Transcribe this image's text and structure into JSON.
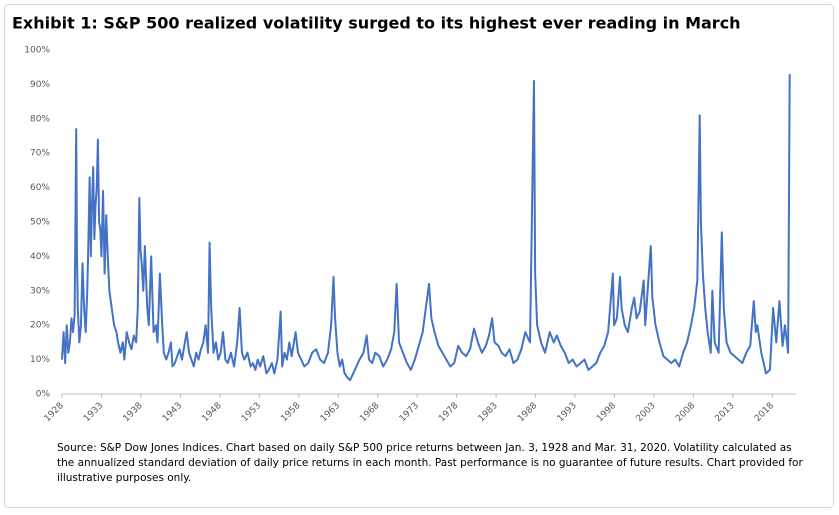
{
  "chart_data": {
    "type": "line",
    "title": "Exhibit 1:  S&P 500 realized volatility surged to its highest ever reading in March",
    "x": [
      1928.0,
      1928.2,
      1928.4,
      1928.6,
      1928.8,
      1929.0,
      1929.2,
      1929.4,
      1929.6,
      1929.8,
      1929.9,
      1930.0,
      1930.2,
      1930.4,
      1930.6,
      1930.8,
      1931.0,
      1931.2,
      1931.35,
      1931.5,
      1931.65,
      1931.8,
      1931.95,
      1932.1,
      1932.25,
      1932.4,
      1932.55,
      1932.7,
      1932.85,
      1933.0,
      1933.2,
      1933.4,
      1933.6,
      1933.8,
      1934.0,
      1934.3,
      1934.6,
      1934.9,
      1935.1,
      1935.4,
      1935.7,
      1935.9,
      1936.2,
      1936.5,
      1936.8,
      1937.1,
      1937.4,
      1937.6,
      1937.8,
      1937.95,
      1938.1,
      1938.3,
      1938.5,
      1938.8,
      1939.0,
      1939.3,
      1939.6,
      1939.9,
      1940.1,
      1940.4,
      1940.7,
      1940.9,
      1941.2,
      1941.5,
      1941.8,
      1942.0,
      1942.3,
      1942.6,
      1942.9,
      1943.2,
      1943.5,
      1943.8,
      1944.1,
      1944.4,
      1944.7,
      1945.0,
      1945.3,
      1945.6,
      1945.9,
      1946.2,
      1946.5,
      1946.7,
      1946.9,
      1947.2,
      1947.5,
      1947.8,
      1948.1,
      1948.4,
      1948.7,
      1949.0,
      1949.4,
      1949.8,
      1950.2,
      1950.5,
      1950.8,
      1951.1,
      1951.5,
      1951.9,
      1952.2,
      1952.5,
      1952.8,
      1953.1,
      1953.5,
      1953.9,
      1954.2,
      1954.6,
      1954.9,
      1955.3,
      1955.7,
      1955.9,
      1956.2,
      1956.5,
      1956.8,
      1957.1,
      1957.6,
      1957.9,
      1958.3,
      1958.7,
      1959.2,
      1959.7,
      1960.2,
      1960.7,
      1961.2,
      1961.7,
      1962.1,
      1962.4,
      1962.6,
      1962.9,
      1963.2,
      1963.5,
      1963.8,
      1964.1,
      1964.5,
      1964.9,
      1965.3,
      1965.7,
      1966.2,
      1966.6,
      1966.9,
      1967.3,
      1967.7,
      1968.2,
      1968.7,
      1969.2,
      1969.7,
      1970.1,
      1970.4,
      1970.7,
      1971.2,
      1971.7,
      1972.2,
      1972.7,
      1973.2,
      1973.7,
      1974.1,
      1974.5,
      1974.8,
      1975.2,
      1975.7,
      1976.2,
      1976.7,
      1977.2,
      1977.7,
      1978.2,
      1978.7,
      1979.2,
      1979.7,
      1980.2,
      1980.7,
      1981.2,
      1981.7,
      1982.1,
      1982.5,
      1982.8,
      1983.3,
      1983.7,
      1984.2,
      1984.7,
      1985.2,
      1985.7,
      1986.2,
      1986.7,
      1987.3,
      1987.8,
      1987.95,
      1988.2,
      1988.7,
      1989.2,
      1989.8,
      1990.3,
      1990.7,
      1991.2,
      1991.7,
      1992.2,
      1992.7,
      1993.2,
      1993.7,
      1994.2,
      1994.7,
      1995.2,
      1995.7,
      1996.2,
      1996.7,
      1997.2,
      1997.8,
      1997.95,
      1998.3,
      1998.7,
      1998.9,
      1999.3,
      1999.7,
      2000.2,
      2000.5,
      2000.8,
      2001.2,
      2001.7,
      2001.9,
      2002.2,
      2002.6,
      2002.8,
      2003.2,
      2003.7,
      2004.2,
      2004.7,
      2005.2,
      2005.7,
      2006.2,
      2006.7,
      2007.2,
      2007.7,
      2008.1,
      2008.5,
      2008.8,
      2008.95,
      2009.2,
      2009.5,
      2009.8,
      2010.2,
      2010.4,
      2010.7,
      2011.2,
      2011.6,
      2011.85,
      2012.2,
      2012.7,
      2013.2,
      2013.7,
      2014.2,
      2014.7,
      2015.2,
      2015.65,
      2015.9,
      2016.1,
      2016.6,
      2017.2,
      2017.7,
      2018.1,
      2018.5,
      2018.9,
      2019.3,
      2019.6,
      2020.0,
      2020.2
    ],
    "series": [
      {
        "color": "#4472c4",
        "values": [
          10,
          18,
          9,
          20,
          12,
          15,
          22,
          18,
          23,
          77,
          40,
          25,
          15,
          20,
          38,
          25,
          18,
          30,
          45,
          63,
          40,
          55,
          66,
          45,
          55,
          60,
          74,
          50,
          48,
          40,
          59,
          35,
          52,
          40,
          30,
          25,
          20,
          18,
          15,
          12,
          15,
          10,
          18,
          15,
          13,
          17,
          15,
          25,
          57,
          42,
          38,
          30,
          43,
          25,
          20,
          40,
          18,
          20,
          15,
          35,
          20,
          12,
          10,
          12,
          15,
          8,
          9,
          11,
          13,
          10,
          14,
          18,
          12,
          10,
          8,
          12,
          10,
          13,
          15,
          20,
          12,
          44,
          25,
          12,
          15,
          10,
          12,
          18,
          10,
          9,
          12,
          8,
          15,
          25,
          12,
          10,
          12,
          8,
          9,
          7,
          10,
          8,
          11,
          6,
          7,
          9,
          6,
          10,
          24,
          8,
          12,
          10,
          15,
          11,
          18,
          12,
          10,
          8,
          9,
          12,
          13,
          10,
          9,
          12,
          20,
          34,
          22,
          12,
          8,
          10,
          6,
          5,
          4,
          6,
          8,
          10,
          12,
          17,
          10,
          9,
          12,
          11,
          8,
          10,
          13,
          18,
          32,
          15,
          12,
          9,
          7,
          10,
          14,
          18,
          25,
          32,
          22,
          18,
          14,
          12,
          10,
          8,
          9,
          14,
          12,
          11,
          13,
          19,
          15,
          12,
          14,
          17,
          22,
          15,
          14,
          12,
          11,
          13,
          9,
          10,
          13,
          18,
          15,
          91,
          35,
          20,
          15,
          12,
          18,
          15,
          17,
          14,
          12,
          9,
          10,
          8,
          9,
          10,
          7,
          8,
          9,
          12,
          14,
          18,
          35,
          20,
          22,
          34,
          25,
          20,
          18,
          25,
          28,
          22,
          24,
          33,
          20,
          30,
          43,
          28,
          20,
          15,
          11,
          10,
          9,
          10,
          8,
          12,
          15,
          20,
          25,
          33,
          81,
          50,
          35,
          25,
          18,
          12,
          30,
          15,
          12,
          47,
          25,
          15,
          12,
          11,
          10,
          9,
          12,
          14,
          27,
          18,
          20,
          12,
          6,
          7,
          25,
          15,
          27,
          14,
          20,
          12,
          93
        ]
      }
    ],
    "xlim": [
      1928,
      2021
    ],
    "xticks": [
      1928,
      1933,
      1938,
      1943,
      1948,
      1953,
      1958,
      1963,
      1968,
      1973,
      1978,
      1983,
      1988,
      1993,
      1998,
      2003,
      2008,
      2013,
      2018
    ],
    "ylim": [
      0,
      100
    ],
    "yticks": [
      {
        "value": 0,
        "label": "0%"
      },
      {
        "value": 10,
        "label": "10%"
      },
      {
        "value": 20,
        "label": "20%"
      },
      {
        "value": 30,
        "label": "30%"
      },
      {
        "value": 40,
        "label": "40%"
      },
      {
        "value": 50,
        "label": "50%"
      },
      {
        "value": 60,
        "label": "60%"
      },
      {
        "value": 70,
        "label": "70%"
      },
      {
        "value": 80,
        "label": "80%"
      },
      {
        "value": 90,
        "label": "90%"
      },
      {
        "value": 100,
        "label": "100%"
      }
    ],
    "grid": false,
    "note": [
      "Source:  S&P Dow Jones Indices.  Chart based on daily S&P 500 price returns between Jan. 3, 1928 and Mar. 31, 2020.  Volatility calculated as",
      "the annualized standard deviation of daily price returns in each month. Past performance is no guarantee of future results.  Chart provided for",
      "illustrative purposes only."
    ]
  }
}
